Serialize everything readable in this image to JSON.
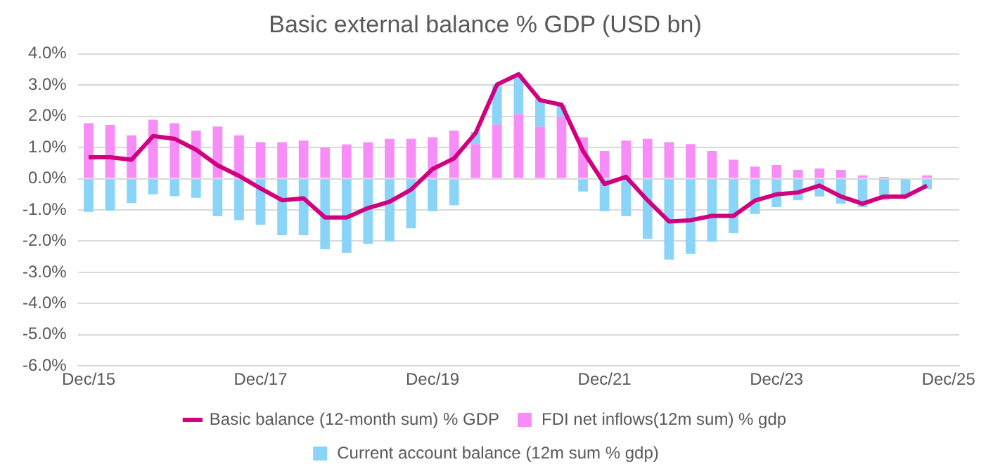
{
  "chart_data": {
    "type": "bar",
    "title": "Basic external balance % GDP (USD bn)",
    "categories": [
      "Dec/15",
      null,
      null,
      null,
      null,
      null,
      null,
      null,
      "Dec/17",
      null,
      null,
      null,
      null,
      null,
      null,
      null,
      "Dec/19",
      null,
      null,
      null,
      null,
      null,
      null,
      null,
      "Dec/21",
      null,
      null,
      null,
      null,
      null,
      null,
      null,
      "Dec/23",
      null,
      null,
      null,
      null,
      null,
      null,
      null,
      "Dec/25"
    ],
    "stacked": true,
    "series": [
      {
        "name": "FDI net inflows(12m sum) % gdp",
        "color": "#f78ef8",
        "values": [
          1.78,
          1.72,
          1.39,
          1.89,
          1.78,
          1.54,
          1.67,
          1.39,
          1.17,
          1.17,
          1.22,
          1.0,
          1.1,
          1.17,
          1.28,
          1.28,
          1.33,
          1.54,
          1.11,
          1.74,
          2.07,
          1.67,
          1.98,
          1.33,
          0.89,
          1.22,
          1.28,
          1.17,
          1.11,
          0.89,
          0.61,
          0.39,
          0.44,
          0.28,
          0.33,
          0.28,
          0.11,
          0.06,
          0.0,
          0.11,
          null
        ]
      },
      {
        "name": "Current account balance (12m sum % gdp)",
        "color": "#8ad4f8",
        "values": [
          -1.06,
          -1.02,
          -0.78,
          -0.5,
          -0.56,
          -0.61,
          -1.2,
          -1.33,
          -1.48,
          -1.81,
          -1.81,
          -2.26,
          -2.37,
          -2.09,
          -2.02,
          -1.59,
          -1.04,
          -0.85,
          0.39,
          1.28,
          1.28,
          0.89,
          0.39,
          -0.41,
          -1.04,
          -1.2,
          -1.93,
          -2.59,
          -2.41,
          -2.02,
          -1.74,
          -1.13,
          -0.91,
          -0.69,
          -0.57,
          -0.8,
          -0.91,
          -0.69,
          -0.57,
          -0.33,
          null
        ]
      },
      {
        "name": "Basic balance (12-month sum) % GDP",
        "type": "line",
        "color": "#d1007f",
        "values": [
          0.69,
          0.69,
          0.61,
          1.37,
          1.28,
          0.93,
          0.43,
          0.09,
          -0.31,
          -0.69,
          -0.63,
          -1.24,
          -1.24,
          -0.94,
          -0.74,
          -0.35,
          0.31,
          0.65,
          1.46,
          3.02,
          3.35,
          2.52,
          2.37,
          0.89,
          -0.17,
          0.06,
          -0.69,
          -1.37,
          -1.33,
          -1.19,
          -1.19,
          -0.7,
          -0.5,
          -0.44,
          -0.22,
          -0.57,
          -0.8,
          -0.57,
          -0.57,
          -0.22,
          null
        ]
      }
    ],
    "ylim": [
      -6,
      4
    ],
    "yticks": [
      {
        "value": 4,
        "label": "4.0%"
      },
      {
        "value": 3,
        "label": "3.0%"
      },
      {
        "value": 2,
        "label": "2.0%"
      },
      {
        "value": 1,
        "label": "1.0%"
      },
      {
        "value": 0,
        "label": "0.0%"
      },
      {
        "value": -1,
        "label": "-1.0%"
      },
      {
        "value": -2,
        "label": "-2.0%"
      },
      {
        "value": -3,
        "label": "-3.0%"
      },
      {
        "value": -4,
        "label": "-4.0%"
      },
      {
        "value": -5,
        "label": "-5.0%"
      },
      {
        "value": -6,
        "label": "-6.0%"
      }
    ],
    "grid": "y",
    "legend": "bottom",
    "marker": "none",
    "line_style": "solid"
  }
}
